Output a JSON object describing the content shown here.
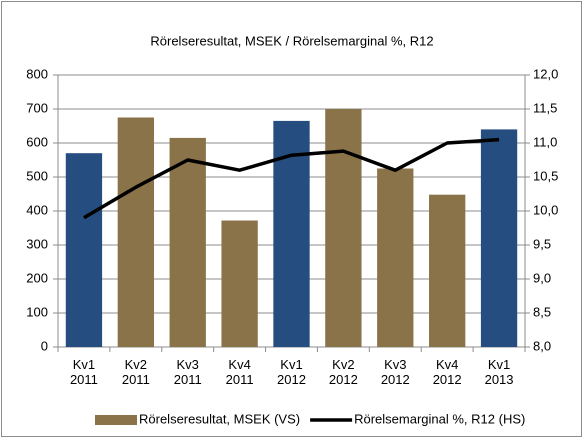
{
  "chart_data": {
    "type": "bar",
    "title": "Rörelseresultat, MSEK / Rörelsemarginal %, R12",
    "categories": [
      "Kv1 2011",
      "Kv2 2011",
      "Kv3 2011",
      "Kv4 2011",
      "Kv1 2012",
      "Kv2 2012",
      "Kv3 2012",
      "Kv4 2012",
      "Kv1 2013"
    ],
    "series": [
      {
        "name": "Rörelseresultat, MSEK (VS)",
        "type": "bar",
        "color": "#8b7349",
        "colors": [
          "#254d7f",
          "#8b7349",
          "#8b7349",
          "#8b7349",
          "#254d7f",
          "#8b7349",
          "#8b7349",
          "#8b7349",
          "#254d7f"
        ],
        "values": [
          570,
          675,
          615,
          372,
          665,
          700,
          525,
          448,
          640
        ]
      },
      {
        "name": "Rörelsemarginal %, R12 (HS)",
        "type": "line",
        "color": "#000000",
        "axis": "y2",
        "values": [
          9.9,
          10.35,
          10.75,
          10.6,
          10.82,
          10.88,
          10.6,
          11.0,
          11.05
        ]
      }
    ],
    "ylim": [
      0,
      800
    ],
    "yticks": [
      0,
      100,
      200,
      300,
      400,
      500,
      600,
      700,
      800
    ],
    "y2lim": [
      8,
      12
    ],
    "y2ticks": [
      {
        "value": 8,
        "label": "8,0"
      },
      {
        "value": 8.5,
        "label": "8,5"
      },
      {
        "value": 9,
        "label": "9,0"
      },
      {
        "value": 9.5,
        "label": "9,5"
      },
      {
        "value": 10,
        "label": "10,0"
      },
      {
        "value": 10.5,
        "label": "10,5"
      },
      {
        "value": 11,
        "label": "11,0"
      },
      {
        "value": 11.5,
        "label": "11,5"
      },
      {
        "value": 12,
        "label": "12,0"
      }
    ],
    "grid": true,
    "legend": "bottom"
  }
}
